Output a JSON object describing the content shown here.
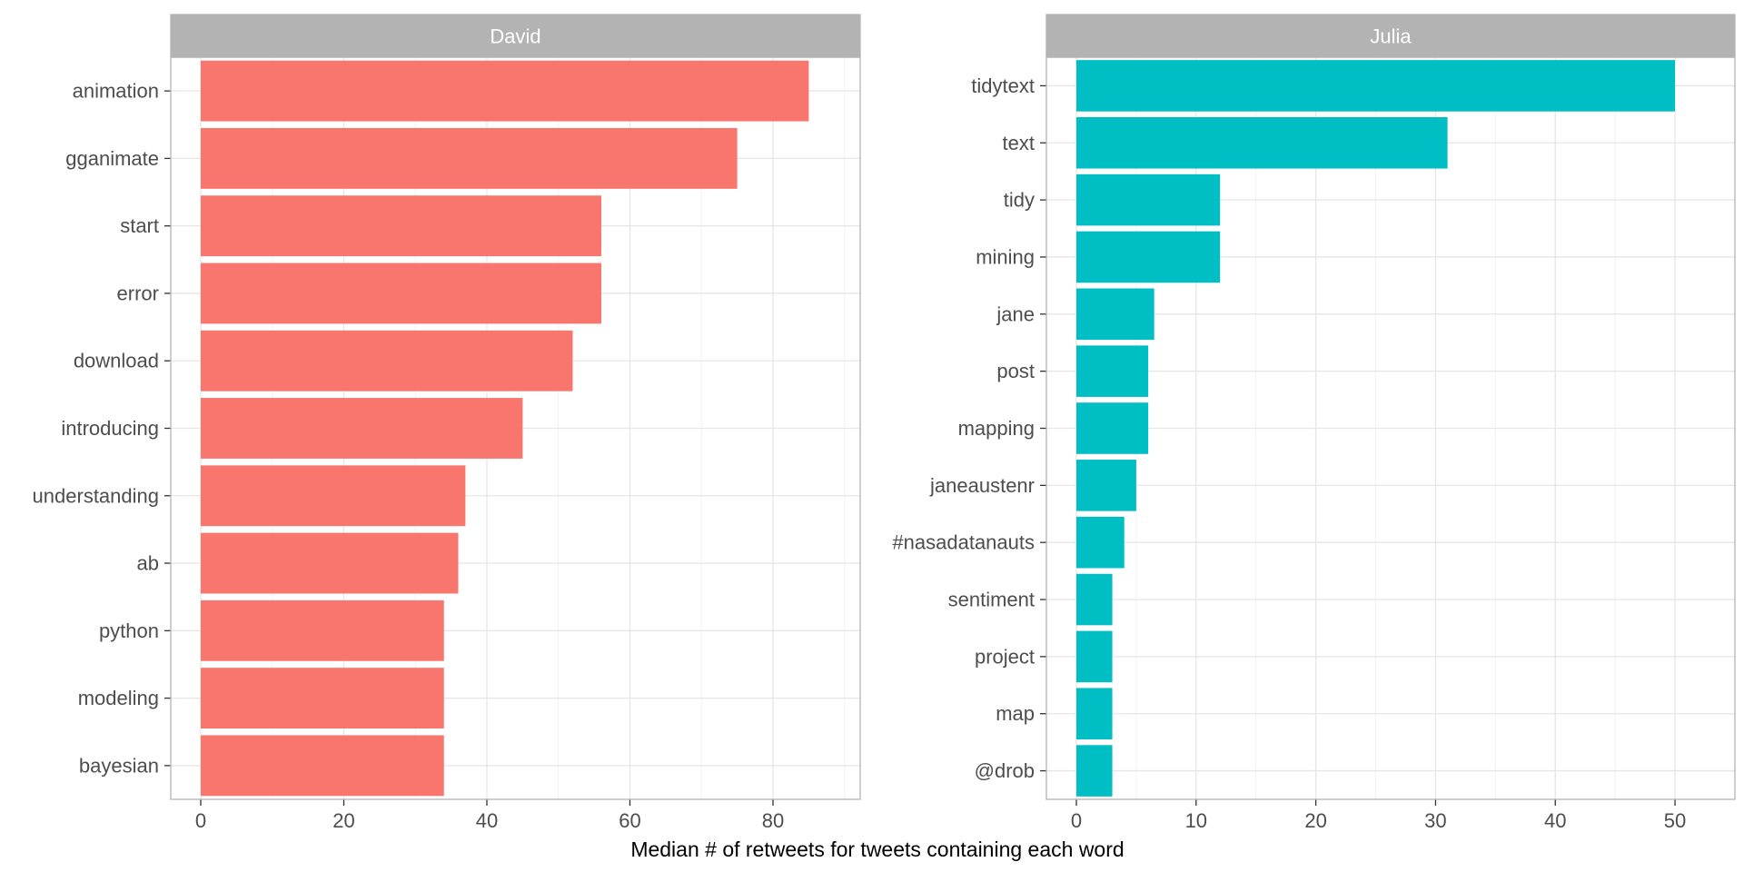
{
  "chart_data": {
    "type": "bar",
    "orientation": "horizontal",
    "xlabel": "Median # of retweets for tweets containing each word",
    "ylabel": "",
    "grid": true,
    "legend": "none",
    "panels": [
      {
        "name": "David",
        "color": "#F8766D",
        "xlim": [
          0,
          88
        ],
        "xticks": [
          0,
          20,
          40,
          60,
          80
        ],
        "categories": [
          "animation",
          "gganimate",
          "start",
          "error",
          "download",
          "introducing",
          "understanding",
          "ab",
          "python",
          "modeling",
          "bayesian"
        ],
        "values": [
          85,
          75,
          56,
          56,
          52,
          45,
          37,
          36,
          34,
          34,
          34
        ]
      },
      {
        "name": "Julia",
        "color": "#00BFC4",
        "xlim": [
          0,
          52.5
        ],
        "xticks": [
          0,
          10,
          20,
          30,
          40,
          50
        ],
        "categories": [
          "tidytext",
          "text",
          "tidy",
          "mining",
          "jane",
          "post",
          "mapping",
          "janeaustenr",
          "#nasadatanauts",
          "sentiment",
          "project",
          "map",
          "@drob"
        ],
        "values": [
          50,
          31,
          12,
          12,
          6.5,
          6,
          6,
          5,
          4,
          3,
          3,
          3,
          3
        ]
      }
    ]
  }
}
